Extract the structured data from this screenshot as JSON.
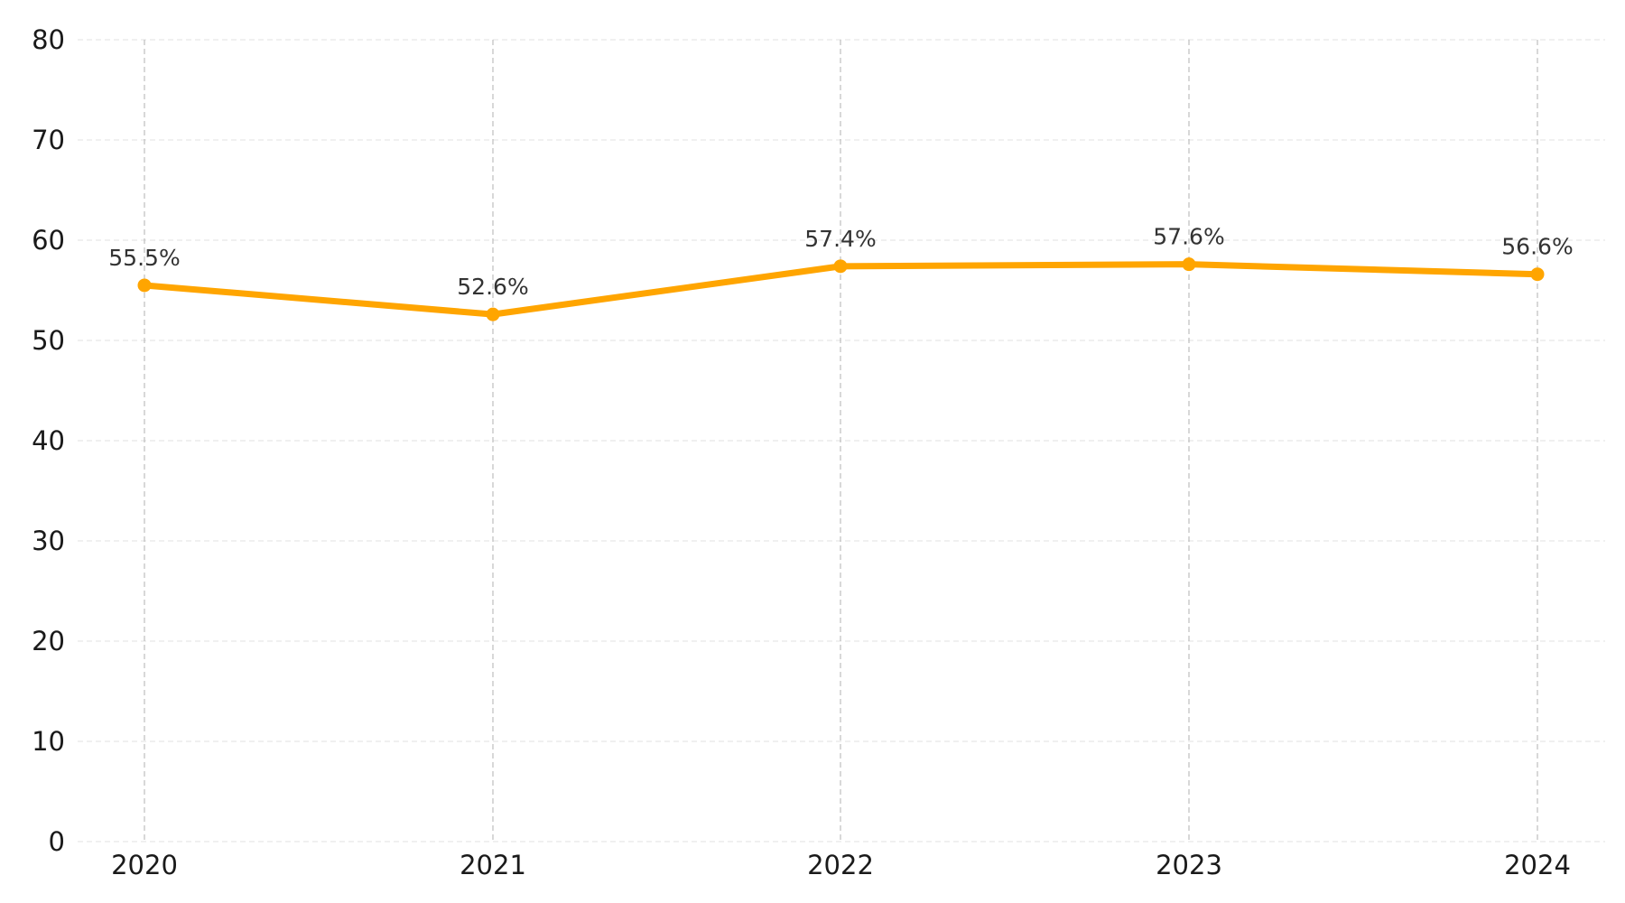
{
  "chart_data": {
    "type": "line",
    "title": "",
    "xlabel": "",
    "ylabel": "",
    "categories": [
      "2020",
      "2021",
      "2022",
      "2023",
      "2024"
    ],
    "series": [
      {
        "values": [
          55.5,
          52.6,
          57.4,
          57.6,
          56.6
        ],
        "data_labels": [
          "55.5%",
          "52.6%",
          "57.4%",
          "57.6%",
          "56.6%"
        ],
        "color": "#FFA500"
      }
    ],
    "ylim": [
      0,
      80
    ],
    "y_ticks": [
      "0",
      "10",
      "20",
      "30",
      "40",
      "50",
      "60",
      "70",
      "80"
    ],
    "grid": true,
    "legend": "none",
    "colors": {
      "line": "#FFA500",
      "grid_horizontal": "#e6e6e6",
      "grid_vertical": "#bdbdbd",
      "tick_text": "#1a1a1a",
      "data_label_text": "#333333",
      "background": "#ffffff"
    }
  }
}
